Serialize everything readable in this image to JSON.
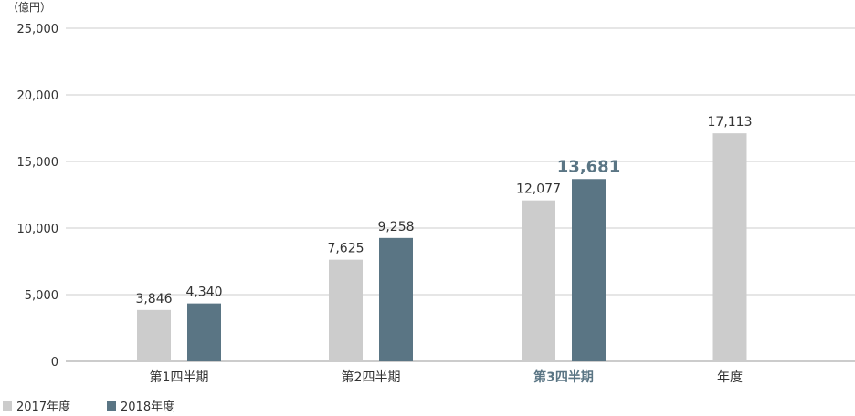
{
  "chart_data": {
    "type": "bar",
    "unit_label": "（億円）",
    "categories": [
      "第1四半期",
      "第2四半期",
      "第3四半期",
      "年度"
    ],
    "highlight_category": "第3四半期",
    "series": [
      {
        "name": "2017年度",
        "color": "#cccccc",
        "values": [
          3846,
          7625,
          12077,
          17113
        ]
      },
      {
        "name": "2018年度",
        "color": "#5a7584",
        "values": [
          4340,
          9258,
          13681,
          null
        ]
      }
    ],
    "value_labels": [
      [
        "3,846",
        "7,625",
        "12,077",
        "17,113"
      ],
      [
        "4,340",
        "9,258",
        "13,681",
        ""
      ]
    ],
    "highlight_value": {
      "series": 1,
      "category": 2
    },
    "ylim": [
      0,
      25000
    ],
    "yticks": [
      0,
      5000,
      10000,
      15000,
      20000,
      25000
    ],
    "ytick_labels": [
      "0",
      "5,000",
      "10,000",
      "15,000",
      "20,000",
      "25,000"
    ],
    "grid": true,
    "grid_color": "#cccccc",
    "highlight_color": "#5a7584",
    "legend_position": "bottom-left"
  }
}
